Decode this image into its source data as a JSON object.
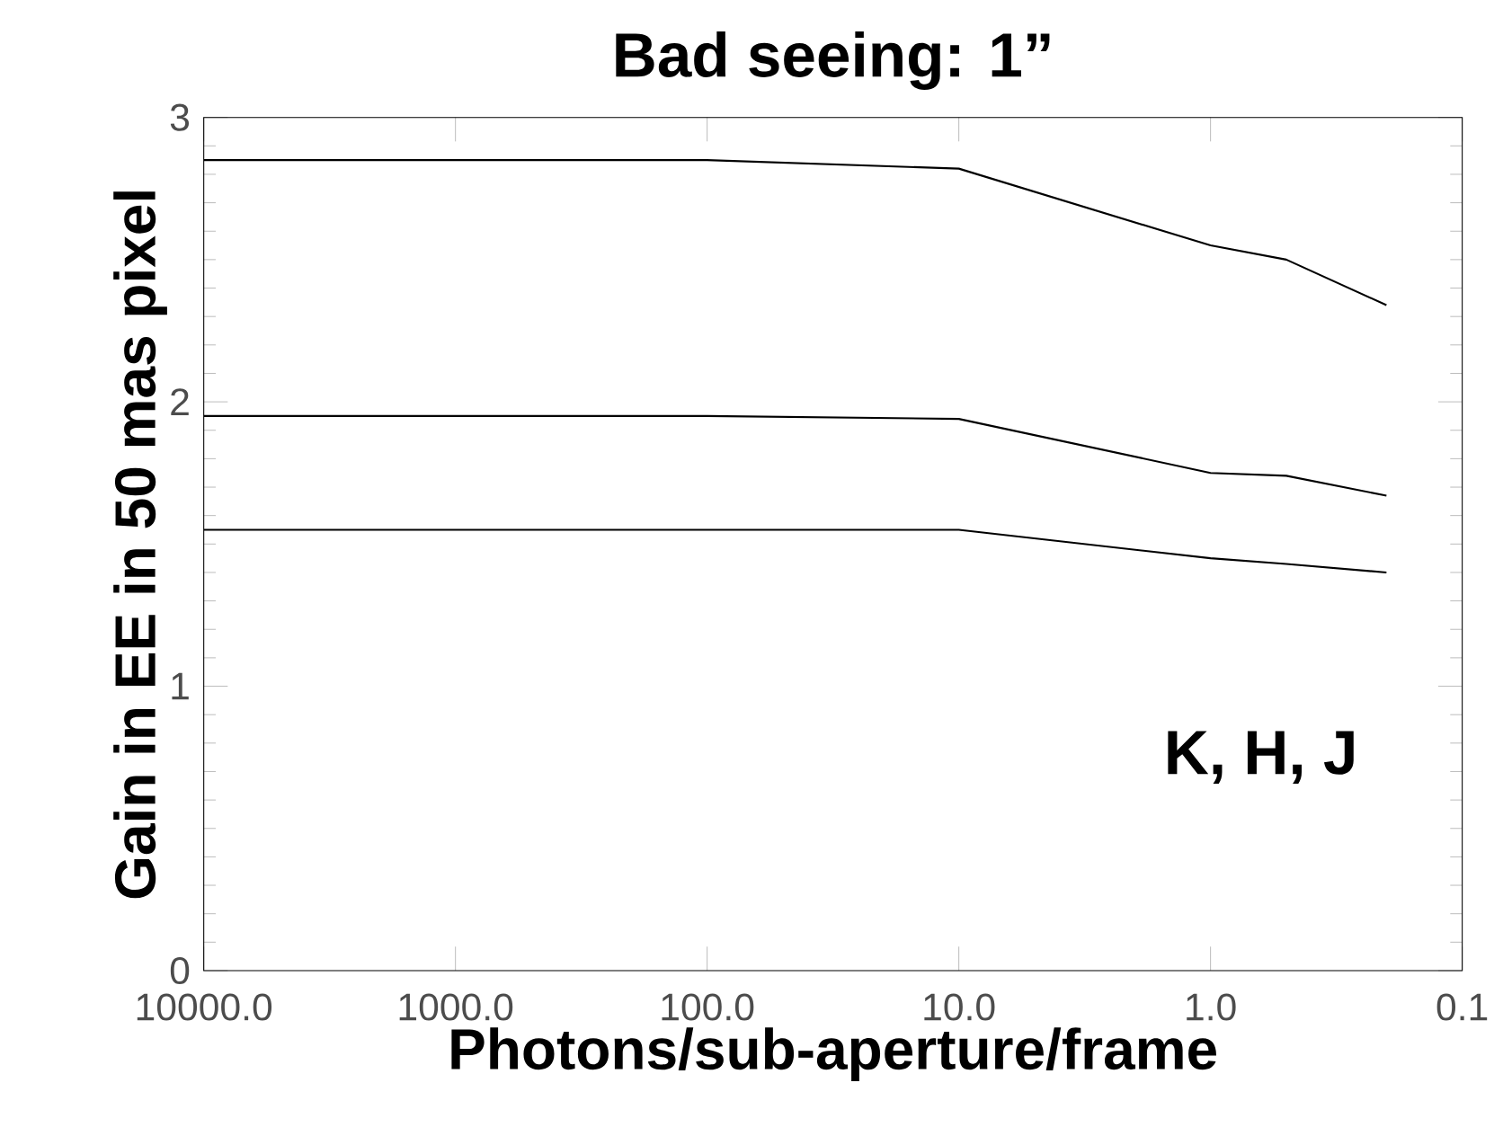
{
  "chart_data": {
    "type": "line",
    "title": "Bad seeing: 1”",
    "xlabel": "Photons/sub-aperture/frame",
    "ylabel": "Gain in EE in 50 mas pixel",
    "log": "x",
    "xlim": [
      10000,
      0.1
    ],
    "ylim": [
      0,
      3
    ],
    "xticks": [
      {
        "value": 10000,
        "label": "10000.0"
      },
      {
        "value": 1000,
        "label": "1000.0"
      },
      {
        "value": 100,
        "label": "100.0"
      },
      {
        "value": 10,
        "label": "10.0"
      },
      {
        "value": 1,
        "label": "1.0"
      },
      {
        "value": 0.1,
        "label": "0.1"
      }
    ],
    "yticks": [
      0,
      1,
      2,
      3
    ],
    "x": [
      10000,
      100,
      10,
      1,
      0.5,
      0.2
    ],
    "series": [
      {
        "color": "#000000",
        "values": [
          2.85,
          2.85,
          2.82,
          2.55,
          2.5,
          2.34
        ]
      },
      {
        "color": "#000000",
        "values": [
          1.95,
          1.95,
          1.94,
          1.75,
          1.74,
          1.67
        ]
      },
      {
        "color": "#000000",
        "values": [
          1.55,
          1.55,
          1.55,
          1.45,
          1.43,
          1.4
        ]
      }
    ],
    "annotations": [
      "K, H, J"
    ],
    "grid": false,
    "marker": "none",
    "line_style": "solid"
  }
}
